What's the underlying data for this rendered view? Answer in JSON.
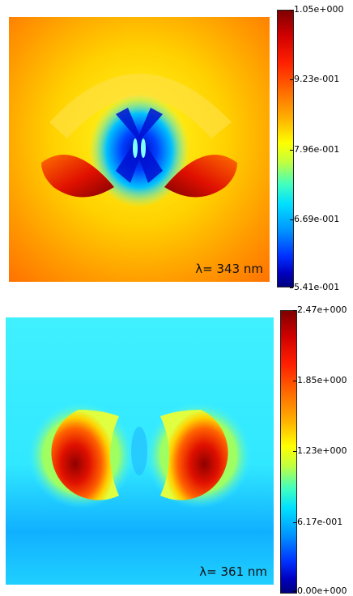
{
  "chart_data": [
    {
      "type": "heatmap",
      "annotation": "λ= 343 nm",
      "colorbar": {
        "min": 0.541,
        "max": 1.05,
        "tick_labels": [
          "1.05e+000",
          "9.23e-001",
          "7.96e-001",
          "6.69e-001",
          "5.41e-001"
        ]
      },
      "colormap": "jet"
    },
    {
      "type": "heatmap",
      "annotation": "λ= 361 nm",
      "colorbar": {
        "min": 0.0,
        "max": 2.47,
        "tick_labels": [
          "2.47e+000",
          "1.85e+000",
          "1.23e+000",
          "6.17e-001",
          "0.00e+000"
        ]
      },
      "colormap": "jet"
    }
  ]
}
